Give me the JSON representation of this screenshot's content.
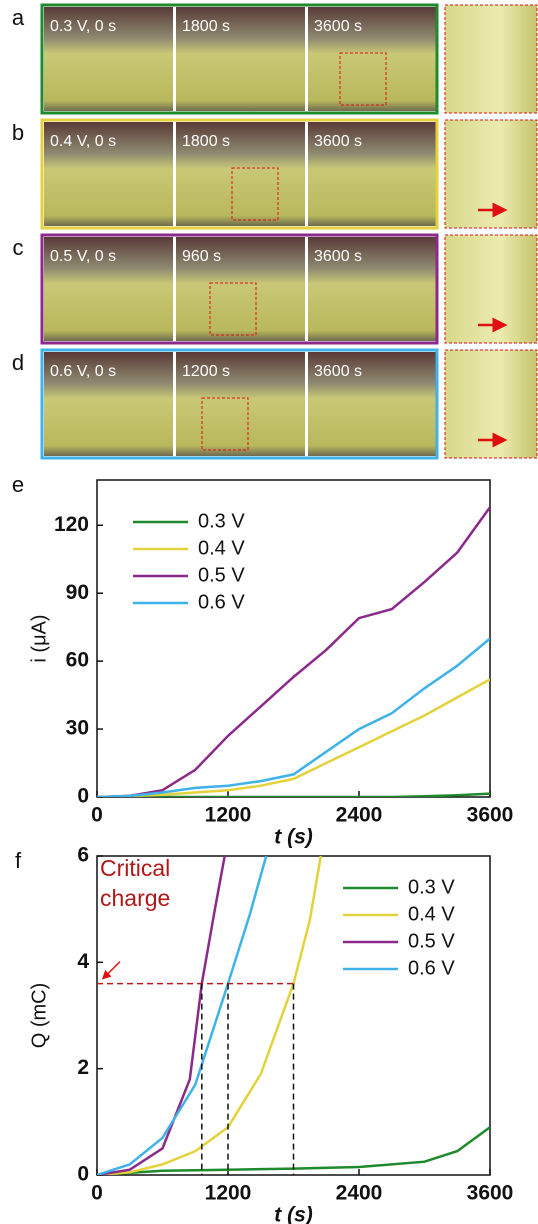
{
  "photo_panels": [
    {
      "letter": "a",
      "labels": [
        "0.3 V, 0 s",
        "1800 s",
        "3600 s"
      ],
      "color": "#1e8a2c"
    },
    {
      "letter": "b",
      "labels": [
        "0.4 V, 0 s",
        "1800 s",
        "3600 s"
      ],
      "color": "#e3d23c"
    },
    {
      "letter": "c",
      "labels": [
        "0.5 V, 0 s",
        "960 s",
        "3600 s"
      ],
      "color": "#8b2a8a"
    },
    {
      "letter": "d",
      "labels": [
        "0.6 V, 0 s",
        "1200 s",
        "3600 s"
      ],
      "color": "#3fb2ea"
    }
  ],
  "chart_data": [
    {
      "type": "line",
      "panel_label": "e",
      "x_label": "t (s)",
      "y_label": "i (μA)",
      "x": [
        0,
        300,
        600,
        900,
        1200,
        1500,
        1800,
        2100,
        2400,
        2700,
        3000,
        3300,
        3600
      ],
      "series": [
        {
          "name": "0.3 V",
          "color": "#1e8a2c",
          "values": [
            0,
            0,
            0,
            0,
            0,
            0,
            0,
            0,
            0,
            0,
            0.3,
            0.8,
            1.5
          ]
        },
        {
          "name": "0.4 V",
          "color": "#e3d23c",
          "values": [
            0,
            0.5,
            1,
            2,
            3,
            5,
            8,
            15,
            22,
            29,
            36,
            44,
            52
          ]
        },
        {
          "name": "0.5 V",
          "color": "#8b2a8a",
          "values": [
            0,
            0.5,
            3,
            12,
            27,
            40,
            53,
            65,
            79,
            83,
            95,
            108,
            128
          ]
        },
        {
          "name": "0.6 V",
          "color": "#3fb2ea",
          "values": [
            0,
            0.5,
            2,
            4,
            5,
            7,
            10,
            20,
            30,
            37,
            48,
            58,
            70
          ]
        }
      ],
      "xlim": [
        0,
        3600
      ],
      "xticks": [
        0,
        1200,
        2400,
        3600
      ],
      "ylim": [
        0,
        140
      ],
      "yticks": [
        0,
        30,
        60,
        90,
        120
      ],
      "legend_position": "upper left"
    },
    {
      "type": "line",
      "panel_label": "f",
      "x_label": "t (s)",
      "y_label": "Q (mC)",
      "series": [
        {
          "name": "0.3 V",
          "color": "#1e8a2c",
          "x": [
            0,
            600,
            1200,
            1800,
            2400,
            3000,
            3300,
            3600
          ],
          "values": [
            0,
            0.08,
            0.1,
            0.12,
            0.15,
            0.25,
            0.45,
            0.9
          ]
        },
        {
          "name": "0.4 V",
          "color": "#e3d23c",
          "x": [
            0,
            300,
            600,
            900,
            1200,
            1500,
            1800,
            1950,
            2050
          ],
          "values": [
            0,
            0.05,
            0.2,
            0.45,
            0.9,
            1.9,
            3.6,
            4.8,
            6
          ]
        },
        {
          "name": "0.5 V",
          "color": "#8b2a8a",
          "x": [
            0,
            300,
            600,
            850,
            960,
            1080,
            1170
          ],
          "values": [
            0,
            0.1,
            0.5,
            1.8,
            3.6,
            5,
            6
          ]
        },
        {
          "name": "0.6 V",
          "color": "#3fb2ea",
          "x": [
            0,
            300,
            600,
            900,
            1200,
            1400,
            1550
          ],
          "values": [
            0,
            0.2,
            0.7,
            1.7,
            3.6,
            4.9,
            6
          ]
        }
      ],
      "xlim": [
        0,
        3600
      ],
      "xticks": [
        0,
        1200,
        2400,
        3600
      ],
      "ylim": [
        0,
        6
      ],
      "yticks": [
        0,
        2,
        4,
        6
      ],
      "legend_position": "upper right",
      "annotation": [
        "Critical",
        "charge"
      ],
      "critical_charge": 3.6,
      "critical_times": [
        960,
        1200,
        1800
      ]
    }
  ]
}
